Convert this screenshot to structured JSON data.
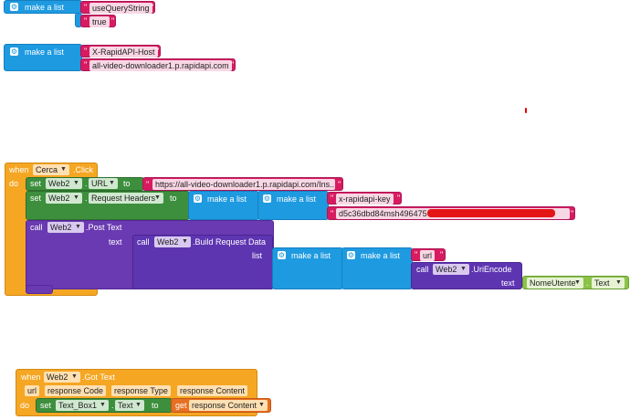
{
  "labels": {
    "make_a_list": "make a list",
    "when": "when",
    "do": "do",
    "set": "set",
    "to": "to",
    "call": "call",
    "text": "text",
    "list": "list",
    "get": "get",
    "dot": ".",
    "dropdown_arrow": "▼",
    "gear_glyph": "⚙"
  },
  "block1": {
    "items": [
      "useQueryString",
      "true"
    ]
  },
  "block2": {
    "items": [
      "X-RapidAPI-Host",
      "all-video-downloader1.p.rapidapi.com"
    ]
  },
  "cerca": {
    "component": "Cerca",
    "event": ".Click",
    "set_url": {
      "component": "Web2",
      "property": "URL",
      "value": "https://all-video-downloader1.p.rapidapi.com/Ins..."
    },
    "set_headers": {
      "component": "Web2",
      "property": "Request Headers",
      "key": "x-rapidapi-key",
      "value": "d5c36dbd84msh496475"
    },
    "post": {
      "component": "Web2",
      "method": ".Post Text",
      "build_component": "Web2",
      "build_method": ".Build Request Data",
      "key": "url",
      "encode_component": "Web2",
      "encode_method": ".UriEncode",
      "field_component": "NomeUtente",
      "field_property": "Text"
    }
  },
  "gottext": {
    "component": "Web2",
    "event": ".Got Text",
    "params": [
      "url",
      "response Code",
      "response Type",
      "response Content"
    ],
    "set_component": "Text_Box1",
    "set_property": "Text",
    "get_var": "response Content"
  },
  "colors": {
    "list_blue": "#1e9ae0",
    "text_pink": "#d81b60",
    "event_orange": "#f5a623",
    "setter_green": "#3d8f3d",
    "procedure_purple": "#6a3ab2",
    "redaction_red": "#e10000"
  }
}
